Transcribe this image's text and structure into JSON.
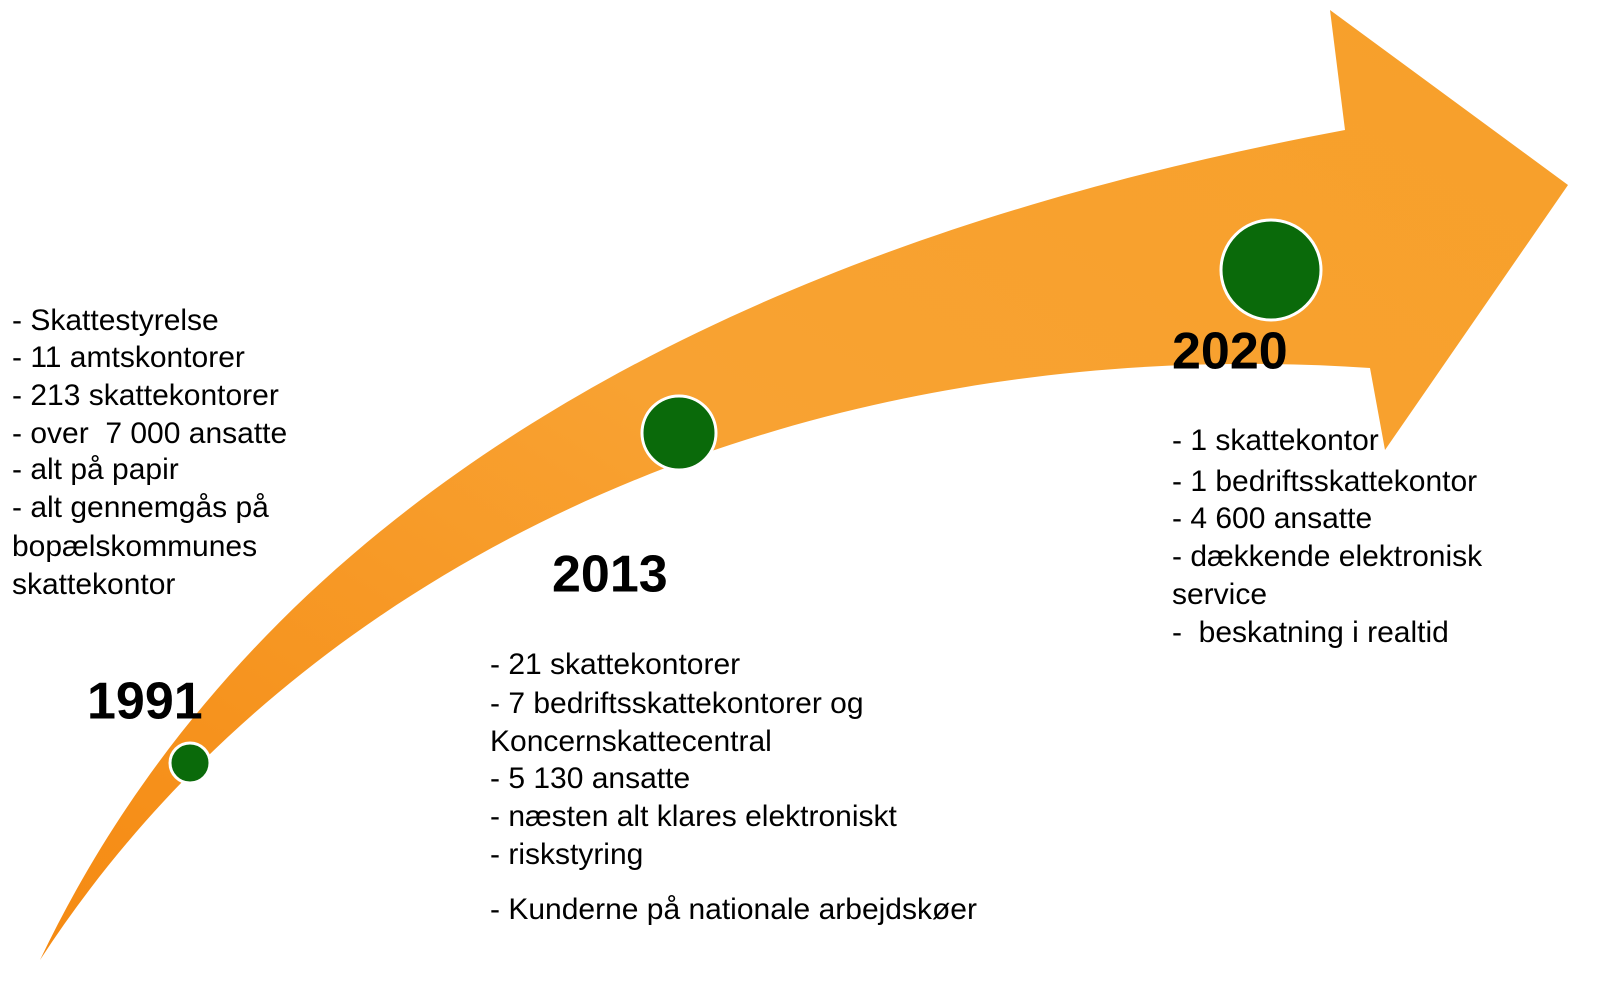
{
  "milestones": [
    {
      "year": "1991",
      "items": [
        "- Skattestyrelse",
        "- 11 amtskontorer",
        "- 213 skattekontorer",
        "- over  7 000 ansatte",
        "- alt på papir",
        "- alt gennemgås på",
        "bopælskommunes",
        "skattekontor"
      ]
    },
    {
      "year": "2013",
      "items": [
        "- 21 skattekontorer",
        "- 7 bedriftsskattekontorer og",
        "Koncernskattecentral",
        "- 5 130 ansatte",
        "- næsten alt klares elektroniskt",
        "- riskstyring",
        "- Kunderne på nationale arbejdskøer"
      ]
    },
    {
      "year": "2020",
      "items": [
        "- 1 skattekontor",
        "- 1 bedriftsskattekontor",
        "- 4 600 ansatte",
        "- dækkende elektronisk",
        "service",
        "-  beskatning i realtid"
      ]
    }
  ]
}
